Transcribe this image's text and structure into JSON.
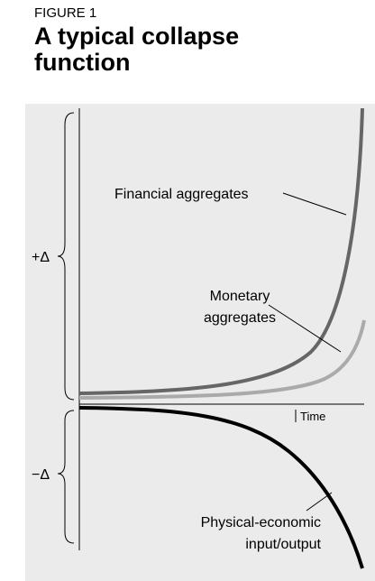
{
  "figure_label": "FIGURE 1",
  "title": "A typical collapse function",
  "axis": {
    "x_label": "Time",
    "upper": "+Δ",
    "lower": "−Δ"
  },
  "curves": [
    {
      "label": "Financial aggregates"
    },
    {
      "label_lines": [
        "Monetary",
        "aggregates"
      ]
    },
    {
      "label_lines": [
        "Physical-economic",
        "input/output"
      ]
    }
  ]
}
